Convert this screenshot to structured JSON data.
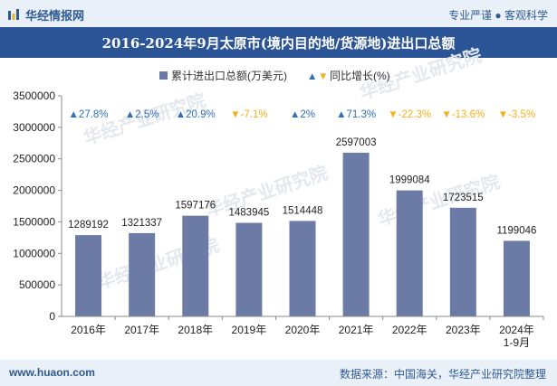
{
  "header": {
    "logo_text": "华经情报网",
    "tagline": "专业严谨 ● 客观科学"
  },
  "footer": {
    "site": "www.huaon.com",
    "source": "数据来源：中国海关，华经产业研究院整理"
  },
  "colors": {
    "bar": "#6b7ba6",
    "up": "#2e6fb5",
    "down": "#f2b01e",
    "title_bg": "#2c5597"
  },
  "chart_data": {
    "type": "bar",
    "title": "2016-2024年9月太原市(境内目的地/货源地)进出口总额",
    "categories": [
      "2016年",
      "2017年",
      "2018年",
      "2019年",
      "2020年",
      "2021年",
      "2022年",
      "2023年",
      "2024年\n1-9月"
    ],
    "series": [
      {
        "name": "累计进出口总额(万美元)",
        "values": [
          1289192,
          1321337,
          1597176,
          1483945,
          1514448,
          2597003,
          1999084,
          1723515,
          1199046
        ]
      },
      {
        "name": "同比增长(%)",
        "values": [
          27.8,
          2.5,
          20.9,
          -7.1,
          2,
          71.3,
          -22.3,
          -13.6,
          -3.5
        ]
      }
    ],
    "yoy_labels": [
      "▲27.8%",
      "▲2.5%",
      "▲20.9%",
      "▼-7.1%",
      "▲2%",
      "▲71.3%",
      "▼-22.3%",
      "▼-13.6%",
      "▼-3.5%"
    ],
    "y_ticks": [
      "0",
      "500000",
      "1000000",
      "1500000",
      "2000000",
      "2500000",
      "3000000",
      "3500000"
    ],
    "ylim": [
      0,
      3500000
    ],
    "legend_position": "top-center",
    "grid": false
  }
}
